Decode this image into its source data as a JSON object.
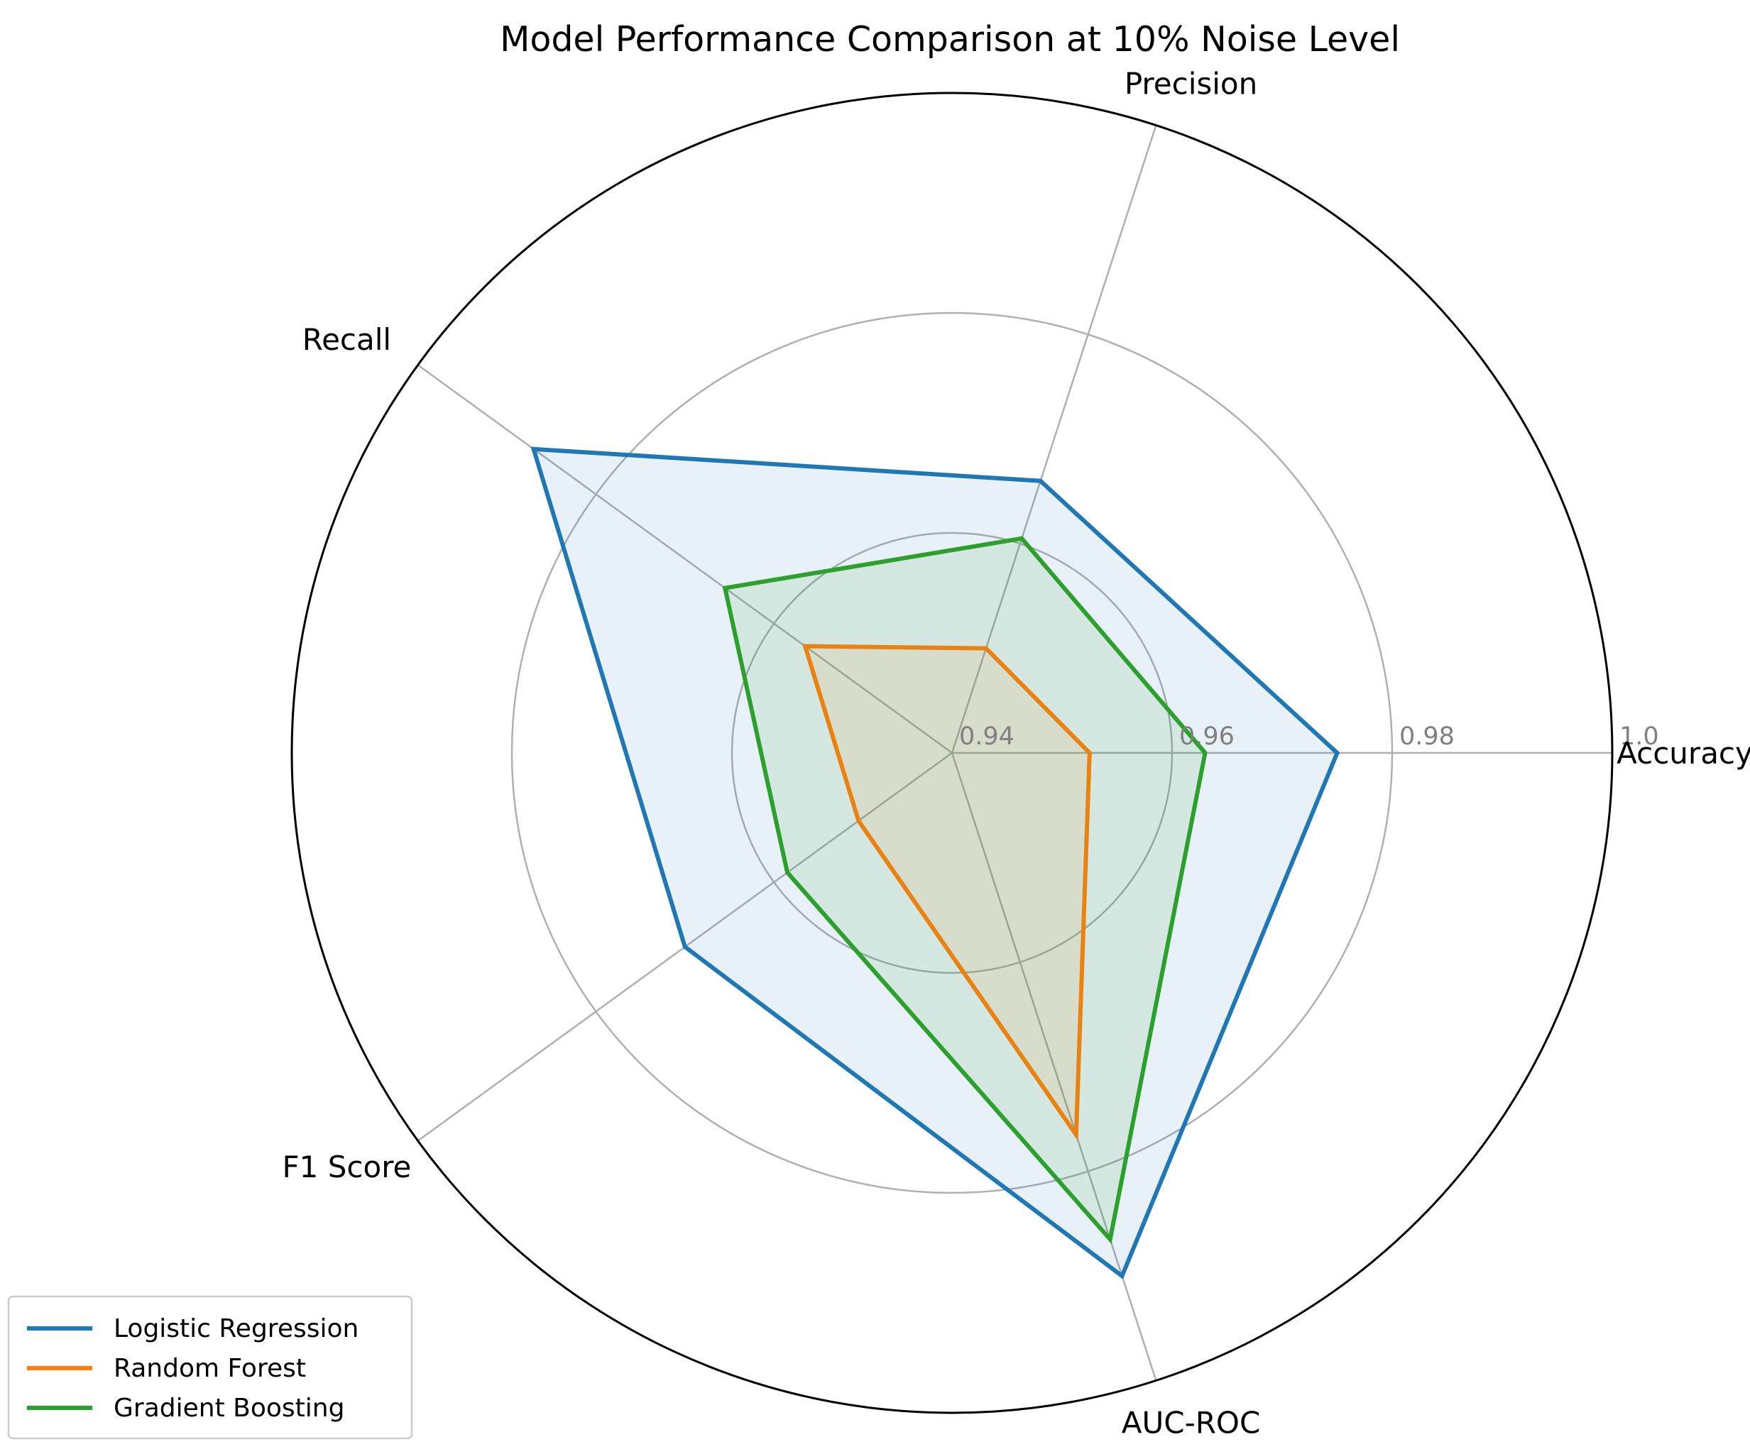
{
  "chart_data": {
    "type": "radar",
    "title": "Model Performance Comparison at 10% Noise Level",
    "axes": [
      "Accuracy",
      "Precision",
      "Recall",
      "F1 Score",
      "AUC-ROC"
    ],
    "rlim": [
      0.94,
      1.0
    ],
    "rticks": [
      0.94,
      0.96,
      0.98,
      1.0
    ],
    "rtick_labels": [
      "0.94",
      "0.96",
      "0.98",
      "1.0"
    ],
    "grid": true,
    "legend_position": "bottom-left",
    "series": [
      {
        "name": "Logistic Regression",
        "color": "#1f77b4",
        "fill_opacity": 0.1,
        "values": [
          0.975,
          0.966,
          0.987,
          0.97,
          0.99
        ]
      },
      {
        "name": "Random Forest",
        "color": "#ff7f0e",
        "fill_opacity": 0.1,
        "values": [
          0.9525,
          0.95,
          0.9565,
          0.9505,
          0.9765
        ]
      },
      {
        "name": "Gradient Boosting",
        "color": "#2ca02c",
        "fill_opacity": 0.1,
        "values": [
          0.963,
          0.9605,
          0.9655,
          0.9585,
          0.9865
        ]
      }
    ]
  }
}
